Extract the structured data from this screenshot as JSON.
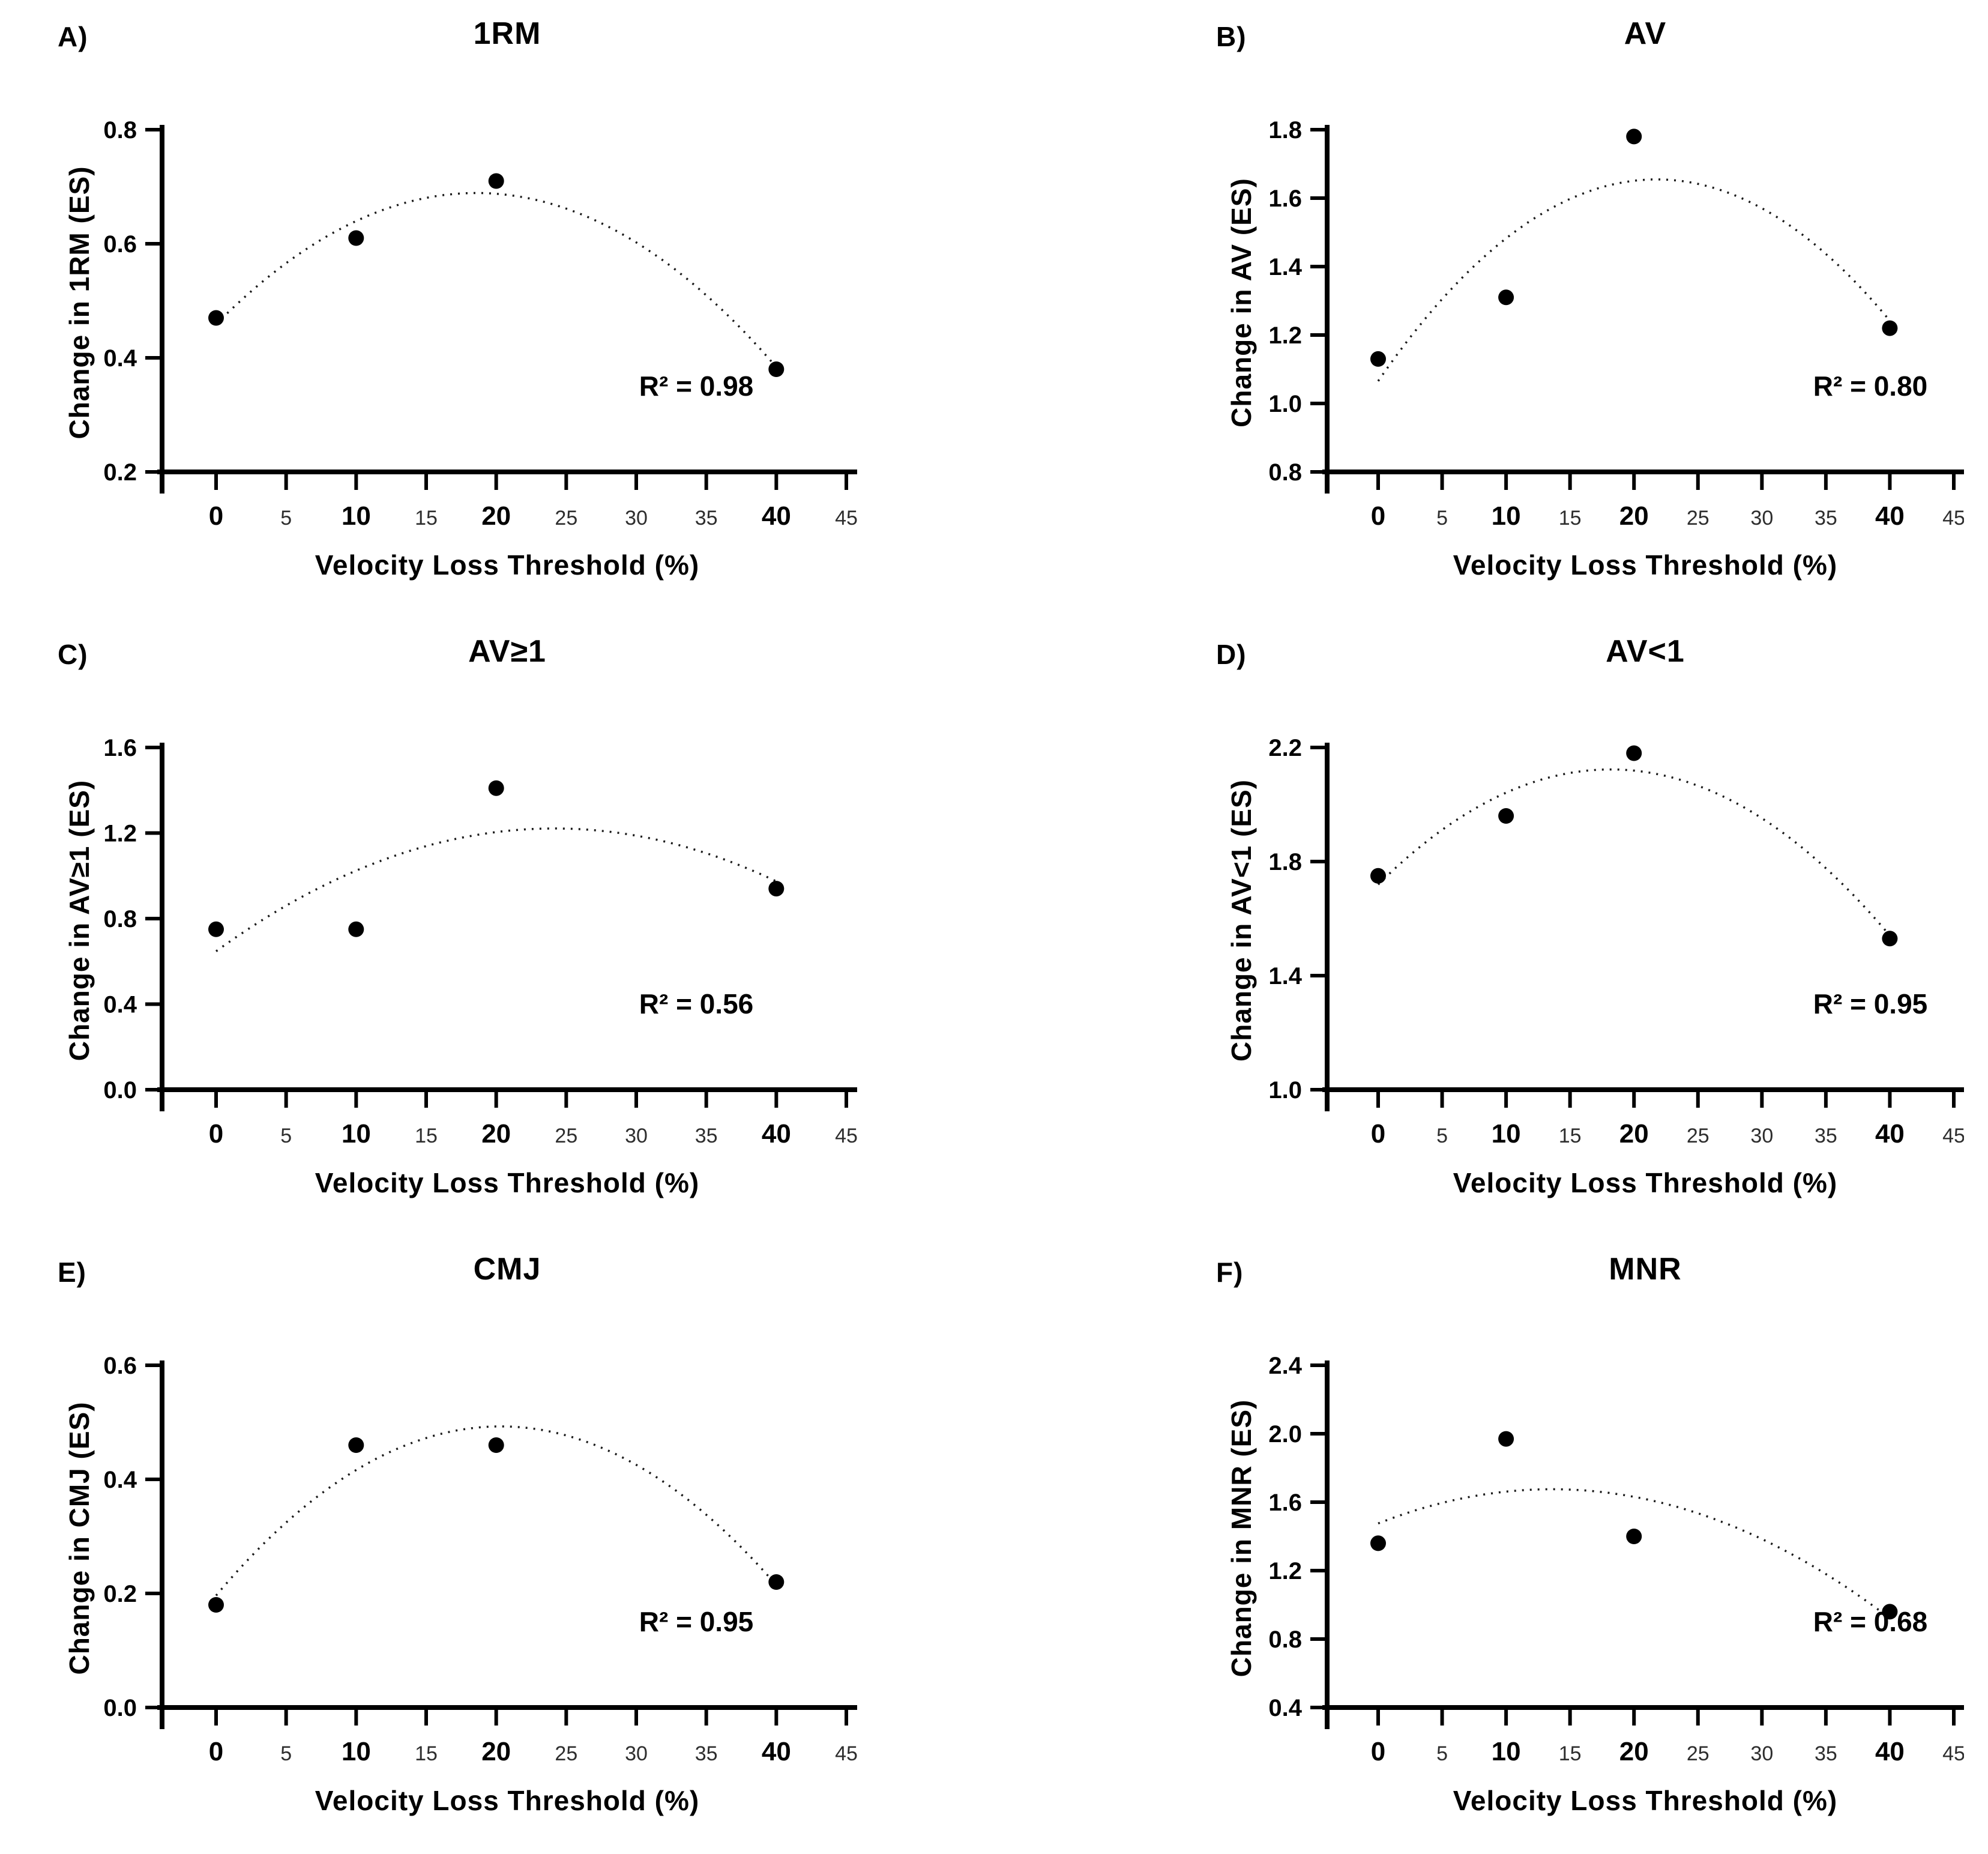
{
  "figure": {
    "name": "Velocity loss threshold dose-response figure",
    "shared_xlabel": "Velocity Loss Threshold (%)"
  },
  "style": {
    "marker_color": "#000000",
    "curve_color": "#1a1a1a",
    "axis_color": "#000000",
    "minor_tick_label_color": "#2e2e2e",
    "background": "#ffffff"
  },
  "chart_data": [
    {
      "panel": "A",
      "panel_label": "A)",
      "type": "scatter",
      "title": "1RM",
      "xlabel": "Velocity Loss Threshold (%)",
      "ylabel": "Change in 1RM (ES)",
      "r2_label": "R² = 0.98",
      "x": [
        0,
        10,
        20,
        40
      ],
      "y": [
        0.47,
        0.61,
        0.71,
        0.38
      ],
      "fit": "quadratic",
      "curve_style": "dotted",
      "grid": false,
      "legend": "none",
      "xlim": [
        0,
        45
      ],
      "xticks": [
        0,
        5,
        10,
        15,
        20,
        25,
        30,
        35,
        40,
        45
      ],
      "xticks_emphasis": [
        0,
        10,
        20,
        40
      ],
      "ylim": [
        0.2,
        0.8
      ],
      "yticks": [
        0.2,
        0.4,
        0.6,
        0.8
      ]
    },
    {
      "panel": "B",
      "panel_label": "B)",
      "type": "scatter",
      "title": "AV",
      "xlabel": "Velocity Loss Threshold (%)",
      "ylabel": "Change in AV (ES)",
      "r2_label": "R² = 0.80",
      "x": [
        0,
        10,
        20,
        40
      ],
      "y": [
        1.13,
        1.31,
        1.78,
        1.22
      ],
      "fit": "quadratic",
      "curve_style": "dotted",
      "grid": false,
      "legend": "none",
      "xlim": [
        0,
        45
      ],
      "xticks": [
        0,
        5,
        10,
        15,
        20,
        25,
        30,
        35,
        40,
        45
      ],
      "xticks_emphasis": [
        0,
        10,
        20,
        40
      ],
      "ylim": [
        0.8,
        1.8
      ],
      "yticks": [
        0.8,
        1.0,
        1.2,
        1.4,
        1.6,
        1.8
      ]
    },
    {
      "panel": "C",
      "panel_label": "C)",
      "type": "scatter",
      "title": "AV≥1",
      "xlabel": "Velocity Loss Threshold (%)",
      "ylabel": "Change in AV≥1 (ES)",
      "r2_label": "R² = 0.56",
      "x": [
        0,
        10,
        20,
        40
      ],
      "y": [
        0.75,
        0.75,
        1.41,
        0.94
      ],
      "fit": "quadratic",
      "curve_style": "dotted",
      "grid": false,
      "legend": "none",
      "xlim": [
        0,
        45
      ],
      "xticks": [
        0,
        5,
        10,
        15,
        20,
        25,
        30,
        35,
        40,
        45
      ],
      "xticks_emphasis": [
        0,
        10,
        20,
        40
      ],
      "ylim": [
        0.0,
        1.6
      ],
      "yticks": [
        0.0,
        0.4,
        0.8,
        1.2,
        1.6
      ]
    },
    {
      "panel": "D",
      "panel_label": "D)",
      "type": "scatter",
      "title": "AV<1",
      "xlabel": "Velocity Loss Threshold (%)",
      "ylabel": "Change in AV<1 (ES)",
      "r2_label": "R² = 0.95",
      "x": [
        0,
        10,
        20,
        40
      ],
      "y": [
        1.75,
        1.96,
        2.18,
        1.53
      ],
      "fit": "quadratic",
      "curve_style": "dotted",
      "grid": false,
      "legend": "none",
      "xlim": [
        0,
        45
      ],
      "xticks": [
        0,
        5,
        10,
        15,
        20,
        25,
        30,
        35,
        40,
        45
      ],
      "xticks_emphasis": [
        0,
        10,
        20,
        40
      ],
      "ylim": [
        1.0,
        2.2
      ],
      "yticks": [
        1.0,
        1.4,
        1.8,
        2.2
      ]
    },
    {
      "panel": "E",
      "panel_label": "E)",
      "type": "scatter",
      "title": "CMJ",
      "xlabel": "Velocity Loss Threshold (%)",
      "ylabel": "Change in CMJ (ES)",
      "r2_label": "R² = 0.95",
      "x": [
        0,
        10,
        20,
        40
      ],
      "y": [
        0.18,
        0.46,
        0.46,
        0.22
      ],
      "fit": "quadratic",
      "curve_style": "dotted",
      "grid": false,
      "legend": "none",
      "xlim": [
        0,
        45
      ],
      "xticks": [
        0,
        5,
        10,
        15,
        20,
        25,
        30,
        35,
        40,
        45
      ],
      "xticks_emphasis": [
        0,
        10,
        20,
        40
      ],
      "ylim": [
        0.0,
        0.6
      ],
      "yticks": [
        0.0,
        0.2,
        0.4,
        0.6
      ]
    },
    {
      "panel": "F",
      "panel_label": "F)",
      "type": "scatter",
      "title": "MNR",
      "xlabel": "Velocity Loss Threshold (%)",
      "ylabel": "Change in MNR (ES)",
      "r2_label": "R² = 0.68",
      "x": [
        0,
        10,
        20,
        40
      ],
      "y": [
        1.36,
        1.97,
        1.4,
        0.96
      ],
      "fit": "quadratic",
      "curve_style": "dotted",
      "grid": false,
      "legend": "none",
      "xlim": [
        0,
        45
      ],
      "xticks": [
        0,
        5,
        10,
        15,
        20,
        25,
        30,
        35,
        40,
        45
      ],
      "xticks_emphasis": [
        0,
        10,
        20,
        40
      ],
      "ylim": [
        0.4,
        2.4
      ],
      "yticks": [
        0.4,
        0.8,
        1.2,
        1.6,
        2.0,
        2.4
      ]
    }
  ]
}
